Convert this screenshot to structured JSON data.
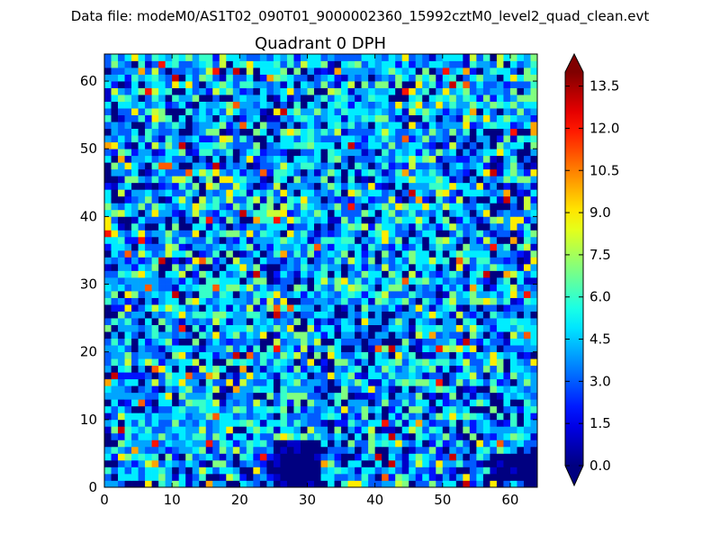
{
  "figure": {
    "suptitle": "Data file: modeM0/AS1T02_090T01_9000002360_15992cztM0_level2_quad_clean.evt"
  },
  "chart_data": {
    "type": "heatmap",
    "title": "Quadrant 0 DPH",
    "xlabel": "",
    "ylabel": "",
    "xlim": [
      0,
      64
    ],
    "ylim": [
      0,
      64
    ],
    "nx": 64,
    "ny": 64,
    "x_ticks": [
      0,
      10,
      20,
      30,
      40,
      50,
      60
    ],
    "y_ticks": [
      0,
      10,
      20,
      30,
      40,
      50,
      60
    ],
    "colormap": "jet",
    "colorbar": {
      "vmin": 0.0,
      "vmax": 14.0,
      "ticks": [
        "0.0",
        "1.5",
        "3.0",
        "4.5",
        "6.0",
        "7.5",
        "9.0",
        "10.5",
        "12.0",
        "13.5"
      ],
      "extend": "both"
    },
    "value_distribution": {
      "typical_range": [
        2,
        6
      ],
      "max_observed": 13
    },
    "zero_regions": [
      {
        "x": [
          25,
          31
        ],
        "y": [
          0,
          6
        ]
      },
      {
        "x": [
          57,
          63
        ],
        "y": [
          1,
          4
        ]
      }
    ]
  }
}
